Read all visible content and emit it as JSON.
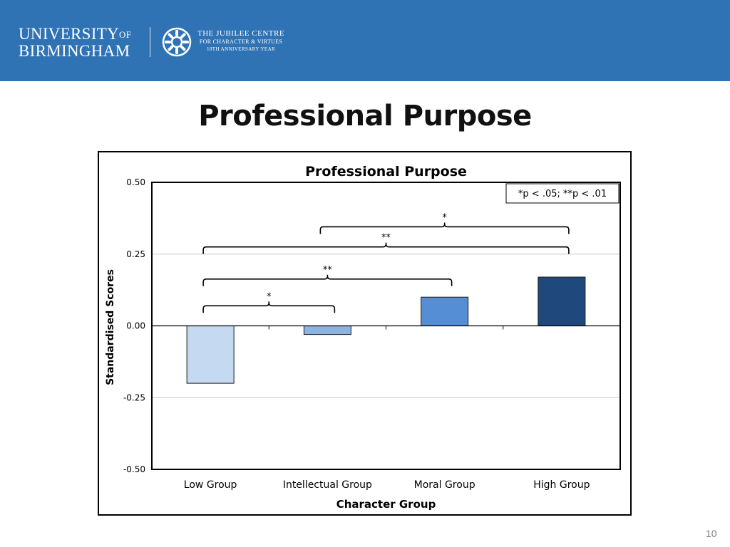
{
  "header": {
    "university_line1": "UNIVERSITY",
    "university_of": "OF",
    "university_line2": "BIRMINGHAM",
    "centre_line1": "THE JUBILEE CENTRE",
    "centre_line2": "FOR CHARACTER & VIRTUES",
    "centre_line3": "10TH ANNIVERSARY YEAR",
    "logo_icon": "jubilee-centre-emblem"
  },
  "slide": {
    "title": "Professional Purpose",
    "page_number": "10"
  },
  "colors": {
    "header_bg": "#2f73b5",
    "low_group": "#c5d9f1",
    "intellectual_group": "#8db3e2",
    "moral_group": "#558ed5",
    "high_group": "#1f497d"
  },
  "chart_data": {
    "type": "bar",
    "title": "Professional Purpose",
    "xlabel": "Character Group",
    "ylabel": "Standardised Scores",
    "categories": [
      "Low Group",
      "Intellectual Group",
      "Moral Group",
      "High Group"
    ],
    "values": [
      -0.2,
      -0.03,
      0.1,
      0.17
    ],
    "ylim": [
      -0.5,
      0.5
    ],
    "yticks": [
      0.5,
      0.25,
      0.0,
      -0.25,
      -0.5
    ],
    "ytick_labels": [
      "0.50",
      "0.25",
      "0.00",
      "-0.25",
      "-0.50"
    ],
    "grid": true,
    "legend_note": "*p < .05; **p < .01",
    "legend_position": "top-right",
    "significance": [
      {
        "from": 0,
        "to": 1,
        "label": "*",
        "height": 0.07
      },
      {
        "from": 0,
        "to": 2,
        "label": "**",
        "height": 0.163
      },
      {
        "from": 0,
        "to": 3,
        "label": "**",
        "height": 0.275
      },
      {
        "from": 1,
        "to": 3,
        "label": "*",
        "height": 0.345
      }
    ]
  }
}
